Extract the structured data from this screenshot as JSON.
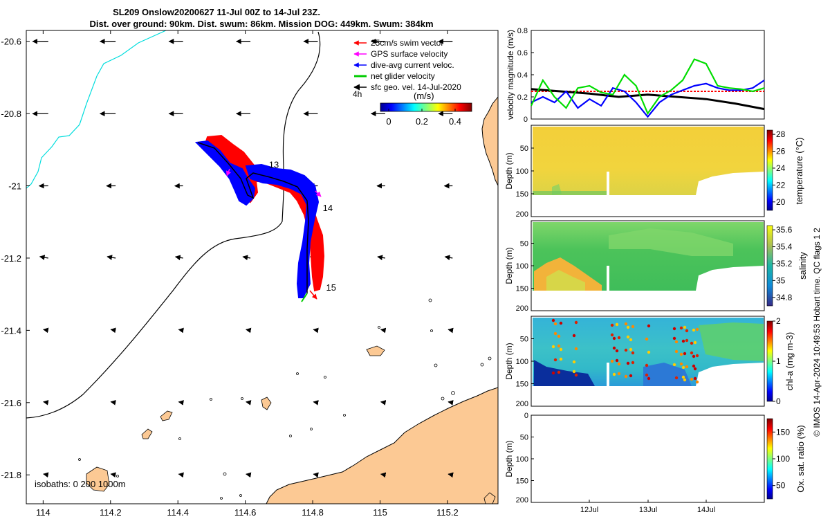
{
  "header": {
    "title_line1": "SL209 Onslow20200627 11-Jul 00Z to 14-Jul 23Z.",
    "title_line2": "Dist. over ground: 90km. Dist. swum: 86km. Mission DOG: 449km. Swum: 384km"
  },
  "map": {
    "x_ticks": [
      "114",
      "114.2",
      "114.4",
      "114.6",
      "114.8",
      "115",
      "115.2"
    ],
    "y_ticks": [
      "-20.6",
      "-20.8",
      "-21",
      "-21.2",
      "-21.4",
      "-21.6",
      "-21.8"
    ],
    "xlim": [
      113.95,
      115.35
    ],
    "ylim": [
      -21.88,
      -20.57
    ],
    "legend": [
      {
        "label": "25cm/s swim vector",
        "color": "#ff0000"
      },
      {
        "label": "GPS surface velocity",
        "color": "#ff00ff"
      },
      {
        "label": "dive-avg current veloc.",
        "color": "#0000ff"
      },
      {
        "label": "net glider velocity",
        "color": "#00cc00"
      },
      {
        "label": "sfc geo. vel. 14-Jul-2020",
        "color": "#000000"
      }
    ],
    "colorbar": {
      "label": "(m/s)",
      "ticks": [
        "0",
        "0.2",
        "0.4"
      ],
      "range": [
        -0.05,
        0.5
      ]
    },
    "time_step_label": "4h",
    "isobaths_label": "isobaths: 0   200  1000m",
    "day_labels": [
      {
        "text": "13",
        "lon": 114.67,
        "lat": -20.95
      },
      {
        "text": "14",
        "lon": 114.83,
        "lat": -21.07
      },
      {
        "text": "15",
        "lon": 114.84,
        "lat": -21.29
      }
    ]
  },
  "chart_data": [
    {
      "type": "line",
      "name": "velocity magnitude",
      "ylabel": "velocity magnitude (m/s)",
      "yticks": [
        "0",
        "0.2",
        "0.4",
        "0.6",
        "0.8"
      ],
      "ylim": [
        0,
        0.8
      ],
      "xlim": [
        0,
        4
      ],
      "series": [
        {
          "color": "#ff0000",
          "style": "dashed",
          "x": [
            0,
            4
          ],
          "y": [
            0.25,
            0.25
          ]
        },
        {
          "color": "#000000",
          "x": [
            0,
            0.5,
            1.0,
            1.5,
            2.0,
            2.5,
            3.0,
            3.5,
            4.0
          ],
          "y": [
            0.27,
            0.25,
            0.23,
            0.2,
            0.22,
            0.2,
            0.18,
            0.14,
            0.09
          ]
        },
        {
          "color": "#0000ff",
          "x": [
            0,
            0.2,
            0.4,
            0.6,
            0.8,
            1.0,
            1.2,
            1.4,
            1.6,
            1.8,
            2.0,
            2.2,
            2.4,
            2.6,
            2.8,
            3.0,
            3.2,
            3.4,
            3.6,
            3.8,
            4.0
          ],
          "y": [
            0.15,
            0.2,
            0.15,
            0.25,
            0.1,
            0.18,
            0.12,
            0.28,
            0.25,
            0.15,
            0.02,
            0.15,
            0.22,
            0.26,
            0.3,
            0.32,
            0.28,
            0.26,
            0.26,
            0.28,
            0.35
          ]
        },
        {
          "color": "#00dd00",
          "x": [
            0,
            0.2,
            0.4,
            0.6,
            0.8,
            1.0,
            1.2,
            1.4,
            1.6,
            1.8,
            2.0,
            2.2,
            2.4,
            2.6,
            2.8,
            3.0,
            3.2,
            3.4,
            3.6,
            3.8,
            4.0
          ],
          "y": [
            0.12,
            0.35,
            0.2,
            0.1,
            0.28,
            0.3,
            0.24,
            0.22,
            0.4,
            0.3,
            0.05,
            0.2,
            0.26,
            0.35,
            0.54,
            0.5,
            0.3,
            0.28,
            0.27,
            0.25,
            0.28
          ]
        }
      ]
    },
    {
      "type": "heatmap",
      "name": "temperature",
      "ylabel": "Depth (m)",
      "cbar_label": "temperature (°C)",
      "cbar_ticks": [
        "20",
        "22",
        "24",
        "26",
        "28"
      ],
      "clim": [
        19,
        28.5
      ],
      "ylim": [
        0,
        200
      ],
      "yticks": [
        "50",
        "100",
        "150",
        "200"
      ]
    },
    {
      "type": "heatmap",
      "name": "salinity",
      "ylabel": "Depth (m)",
      "cbar_label": "salinity",
      "cbar_ticks": [
        "34.8",
        "35",
        "35.2",
        "35.4",
        "35.6"
      ],
      "clim": [
        34.7,
        35.65
      ],
      "ylim": [
        0,
        200
      ],
      "yticks": [
        "50",
        "100",
        "150",
        "200"
      ]
    },
    {
      "type": "heatmap",
      "name": "chl-a",
      "ylabel": "Depth (m)",
      "cbar_label": "chl-a (mg m-3)",
      "cbar_ticks": [
        "0",
        "1",
        "2"
      ],
      "clim": [
        0,
        2
      ],
      "ylim": [
        0,
        200
      ],
      "yticks": [
        "50",
        "100",
        "150",
        "200"
      ]
    },
    {
      "type": "heatmap",
      "name": "oxygen",
      "ylabel": "Depth (m)",
      "cbar_label": "Ox. sat. ratio (%)",
      "cbar_ticks": [
        "50",
        "100",
        "150"
      ],
      "clim": [
        25,
        175
      ],
      "ylim": [
        0,
        200
      ],
      "yticks": [
        "0",
        "50",
        "100",
        "150",
        "200"
      ],
      "xticks": [
        "12Jul",
        "13Jul",
        "14Jul"
      ]
    }
  ],
  "footer": {
    "credit": "© IMOS 14-Apr-2024 10:49:53 Hobart time. QC flags 1  2"
  }
}
